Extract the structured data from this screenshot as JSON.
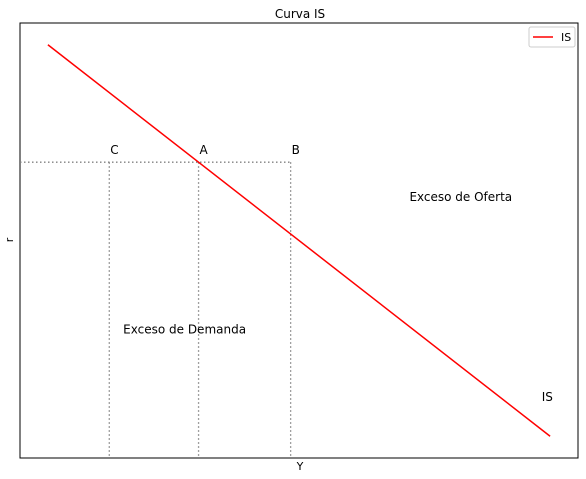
{
  "chart_data": {
    "type": "line",
    "title": "Curva IS",
    "xlabel": "Y",
    "ylabel": "r",
    "xlim": [
      0,
      10
    ],
    "ylim": [
      0,
      10
    ],
    "grid": false,
    "legend_position": "top-right",
    "series": [
      {
        "name": "IS",
        "color": "#ff0000",
        "x": [
          0.5,
          9.5
        ],
        "y": [
          9.5,
          0.5
        ]
      }
    ],
    "reference_lines": {
      "horizontal_y": 6.8,
      "vertical_x": [
        1.6,
        3.2,
        4.85
      ],
      "color": "#808080",
      "style": "dotted"
    },
    "points": [
      {
        "label": "C",
        "x": 1.6,
        "y": 6.8
      },
      {
        "label": "A",
        "x": 3.2,
        "y": 6.8
      },
      {
        "label": "B",
        "x": 4.85,
        "y": 6.8
      }
    ],
    "annotations": [
      {
        "text": "Exceso de Oferta",
        "x": 7.9,
        "y": 6.0
      },
      {
        "text": "Exceso de Demanda",
        "x": 2.95,
        "y": 2.95
      },
      {
        "text": "IS",
        "x": 9.45,
        "y": 1.4
      }
    ]
  }
}
